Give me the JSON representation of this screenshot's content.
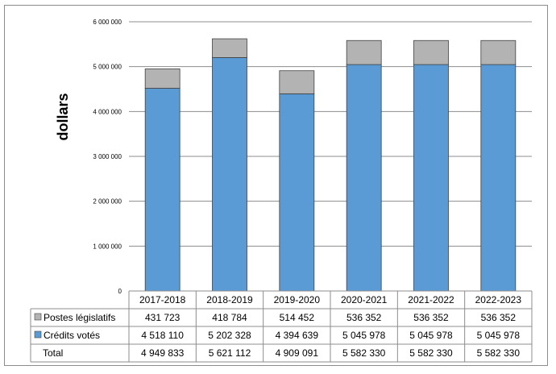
{
  "chart_data": {
    "type": "bar",
    "stacked": true,
    "ylabel": "dollars",
    "ylim": [
      0,
      6000000
    ],
    "yticks": [
      "0",
      "1 000 000",
      "2 000 000",
      "3 000 000",
      "4 000 000",
      "5 000 000",
      "6 000 000"
    ],
    "categories": [
      "2017-2018",
      "2018-2019",
      "2019-2020",
      "2020-2021",
      "2021-2022",
      "2022-2023"
    ],
    "series": [
      {
        "name": "Crédits votés",
        "color": "#5b9bd5",
        "values": [
          4518110,
          5202328,
          4394639,
          5045978,
          5045978,
          5045978
        ],
        "labels": [
          "4 518 110",
          "5 202 328",
          "4 394 639",
          "5 045 978",
          "5 045 978",
          "5 045 978"
        ]
      },
      {
        "name": "Postes législatifs",
        "color": "#b3b3b3",
        "values": [
          431723,
          418784,
          514452,
          536352,
          536352,
          536352
        ],
        "labels": [
          "431 723",
          "418 784",
          "514 452",
          "536 352",
          "536 352",
          "536 352"
        ]
      }
    ],
    "total": {
      "name": "Total",
      "values": [
        4949833,
        5621112,
        4909091,
        5582330,
        5582330,
        5582330
      ],
      "labels": [
        "4 949 833",
        "5 621 112",
        "4 909 091",
        "5 582 330",
        "5 582 330",
        "5 582 330"
      ]
    },
    "grid": true,
    "legend": "data-table"
  }
}
